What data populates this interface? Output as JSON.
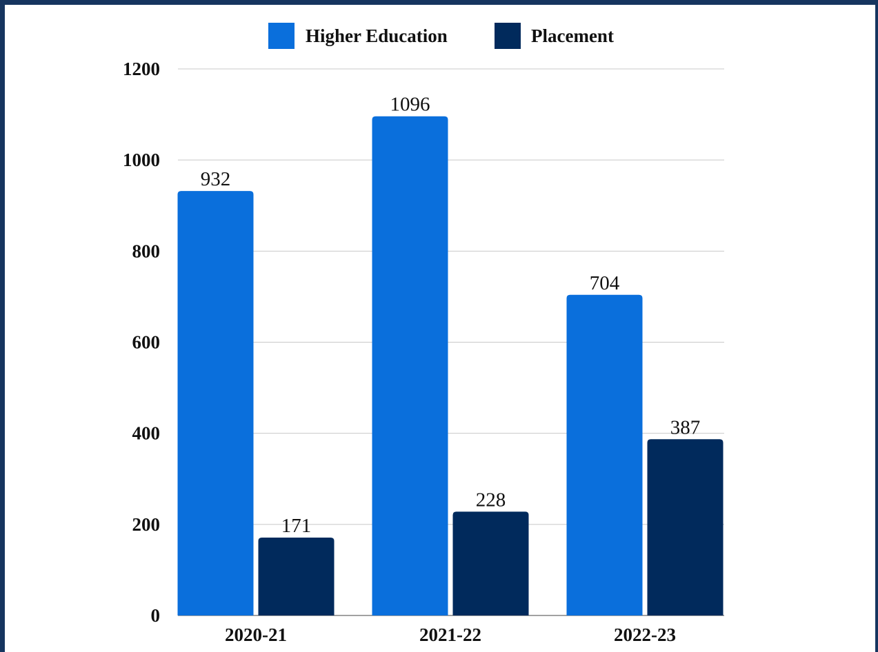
{
  "chart_data": {
    "type": "bar",
    "title": "",
    "xlabel": "",
    "ylabel": "",
    "categories": [
      "2020-21",
      "2021-22",
      "2022-23"
    ],
    "series": [
      {
        "name": "Higher Education",
        "values": [
          932,
          1096,
          704
        ],
        "color": "#0a6fdc"
      },
      {
        "name": "Placement",
        "values": [
          171,
          228,
          387
        ],
        "color": "#012a5c"
      }
    ],
    "ylim": [
      0,
      1200
    ],
    "yticks": [
      0,
      200,
      400,
      600,
      800,
      1000,
      1200
    ],
    "grid": true,
    "legend": "top-center",
    "data_labels": true
  }
}
